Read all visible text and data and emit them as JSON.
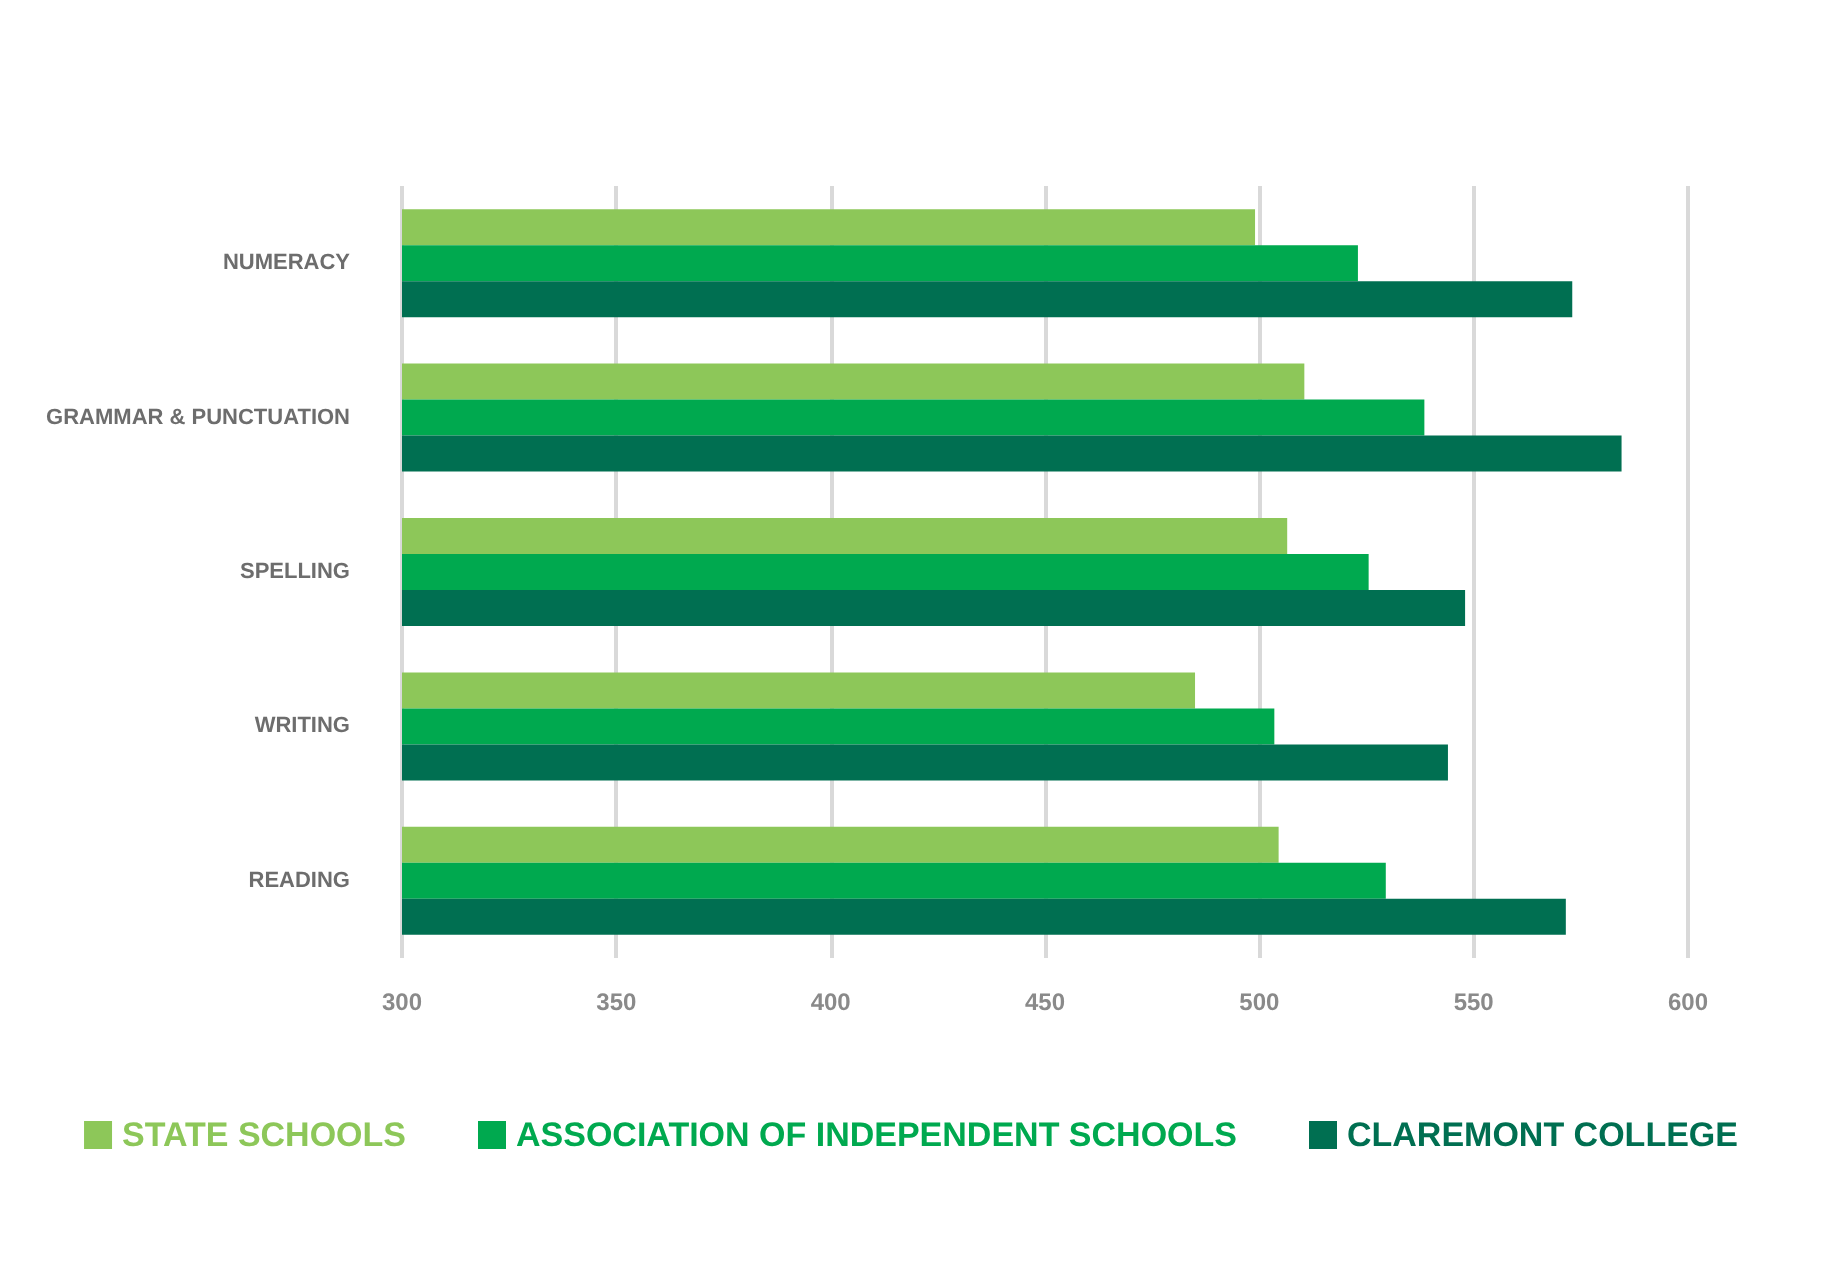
{
  "chart_data": {
    "type": "bar",
    "orientation": "horizontal",
    "categories": [
      "NUMERACY",
      "GRAMMAR & PUNCTUATION",
      "SPELLING",
      "WRITING",
      "READING"
    ],
    "series": [
      {
        "name": "STATE SCHOOLS",
        "color": "#8dc759",
        "values": [
          499,
          510.5,
          506.5,
          485,
          504.5
        ]
      },
      {
        "name": "ASSOCIATION OF INDEPENDENT SCHOOLS",
        "color": "#00a94f",
        "values": [
          523,
          538.5,
          525.5,
          503.5,
          529.5
        ]
      },
      {
        "name": "CLAREMONT COLLEGE",
        "color": "#006f51",
        "values": [
          573,
          584.5,
          548,
          544,
          571.5
        ]
      }
    ],
    "xlim": [
      300,
      600
    ],
    "xticks": [
      300,
      350,
      400,
      450,
      500,
      550,
      600
    ],
    "grid": "x",
    "legend": "bottom"
  }
}
